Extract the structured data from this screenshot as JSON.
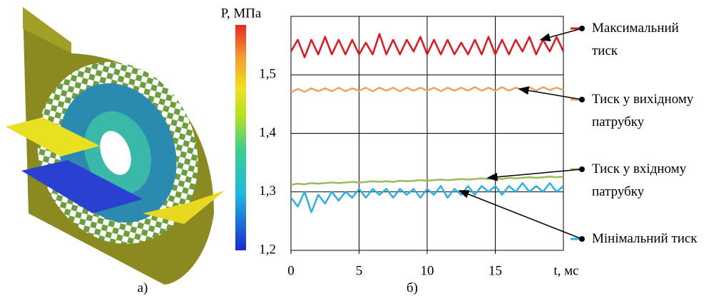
{
  "chart_data": {
    "type": "line",
    "colorbar_label": "Р, МПа",
    "xlabel": "t, мс",
    "panel_labels": [
      "а)",
      "б)"
    ],
    "xlim": [
      0,
      20
    ],
    "xticks": [
      0,
      5,
      10,
      15
    ],
    "ylim": [
      1.2,
      1.6
    ],
    "yticks": [
      {
        "value": 1.2,
        "label": "1,2"
      },
      {
        "value": 1.3,
        "label": "1,3"
      },
      {
        "value": 1.4,
        "label": "1,4"
      },
      {
        "value": 1.5,
        "label": "1,5"
      }
    ],
    "grid": true,
    "x": [
      0,
      0.5,
      1,
      1.5,
      2,
      2.5,
      3,
      3.5,
      4,
      4.5,
      5,
      5.5,
      6,
      6.5,
      7,
      7.5,
      8,
      8.5,
      9,
      9.5,
      10,
      10.5,
      11,
      11.5,
      12,
      12.5,
      13,
      13.5,
      14,
      14.5,
      15,
      15.5,
      16,
      16.5,
      17,
      17.5,
      18,
      18.5,
      19,
      19.5,
      20
    ],
    "series": [
      {
        "name": "Максимальний тиск",
        "color": "#e8141c",
        "values": [
          1.54,
          1.56,
          1.53,
          1.56,
          1.535,
          1.565,
          1.535,
          1.56,
          1.535,
          1.56,
          1.535,
          1.555,
          1.535,
          1.57,
          1.535,
          1.56,
          1.535,
          1.56,
          1.54,
          1.565,
          1.535,
          1.56,
          1.535,
          1.56,
          1.535,
          1.555,
          1.535,
          1.56,
          1.535,
          1.565,
          1.535,
          1.56,
          1.535,
          1.56,
          1.54,
          1.565,
          1.535,
          1.56,
          1.54,
          1.565,
          1.54
        ]
      },
      {
        "name": "Тиск у вихідному патрубку",
        "color": "#f0a060",
        "values": [
          1.47,
          1.476,
          1.471,
          1.477,
          1.472,
          1.477,
          1.472,
          1.478,
          1.472,
          1.477,
          1.473,
          1.478,
          1.472,
          1.478,
          1.473,
          1.478,
          1.472,
          1.478,
          1.473,
          1.478,
          1.473,
          1.478,
          1.472,
          1.478,
          1.473,
          1.478,
          1.473,
          1.479,
          1.473,
          1.478,
          1.473,
          1.479,
          1.473,
          1.478,
          1.474,
          1.479,
          1.473,
          1.479,
          1.474,
          1.478,
          1.474
        ]
      },
      {
        "name": "Тиск у вхідному патрубку",
        "color": "#9bbb59",
        "values": [
          1.312,
          1.314,
          1.313,
          1.315,
          1.314,
          1.315,
          1.316,
          1.315,
          1.316,
          1.317,
          1.316,
          1.317,
          1.318,
          1.317,
          1.318,
          1.317,
          1.319,
          1.318,
          1.319,
          1.32,
          1.319,
          1.32,
          1.321,
          1.32,
          1.321,
          1.322,
          1.321,
          1.322,
          1.323,
          1.322,
          1.323,
          1.322,
          1.324,
          1.323,
          1.324,
          1.325,
          1.324,
          1.325,
          1.326,
          1.325,
          1.326
        ]
      },
      {
        "name": "Мінімальний тиск",
        "color": "#2ab0e8",
        "values": [
          1.29,
          1.275,
          1.3,
          1.265,
          1.295,
          1.28,
          1.3,
          1.285,
          1.3,
          1.29,
          1.305,
          1.29,
          1.305,
          1.295,
          1.305,
          1.29,
          1.305,
          1.295,
          1.305,
          1.29,
          1.305,
          1.295,
          1.31,
          1.29,
          1.305,
          1.295,
          1.31,
          1.295,
          1.31,
          1.3,
          1.31,
          1.295,
          1.31,
          1.3,
          1.315,
          1.3,
          1.31,
          1.3,
          1.315,
          1.3,
          1.31
        ]
      }
    ]
  }
}
